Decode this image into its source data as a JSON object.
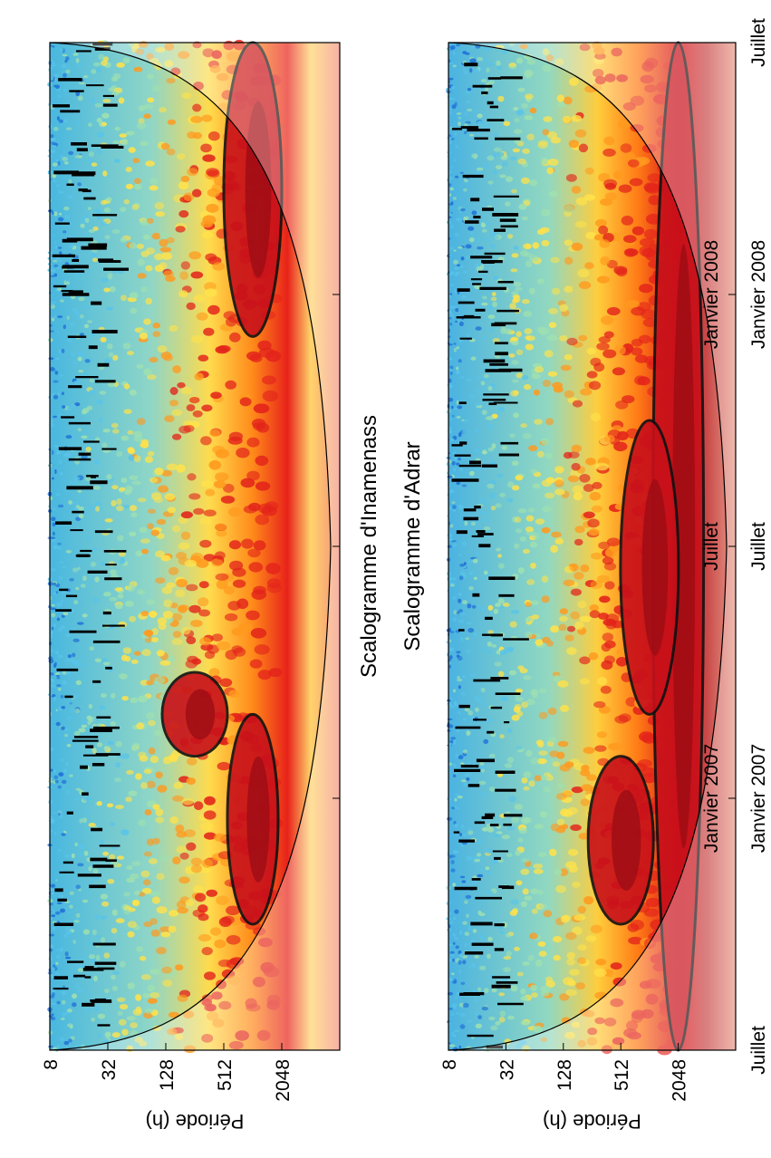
{
  "chart_data": [
    {
      "type": "heatmap",
      "title": "Scalogramme d'Inamenass",
      "ylabel": "Période (h)",
      "xlabel": "",
      "period_ticks": [
        "8",
        "32",
        "128",
        "512",
        "2048"
      ],
      "period_values": [
        8,
        32,
        128,
        512,
        2048
      ],
      "period_range": [
        8,
        8192
      ],
      "period_scale": "log2",
      "time_ticks": [
        "Janvier 2007",
        "Juillet",
        "Janvier 2008"
      ],
      "time_start": "Juillet 2006",
      "time_end": "Juillet 2008",
      "colormap": "jet",
      "contours": "significance (black)",
      "cone_of_influence": true,
      "high_power_bands": [
        {
          "center_period": 1024,
          "from": "2006-10",
          "to": "2007-03"
        },
        {
          "center_period": 1024,
          "from": "2007-12",
          "to": "2008-07"
        },
        {
          "center_period": 256,
          "from": "2007-02",
          "to": "2007-04"
        }
      ]
    },
    {
      "type": "heatmap",
      "title": "Scalogramme d'Adrar",
      "ylabel": "Période (h)",
      "xlabel": "",
      "period_ticks": [
        "8",
        "32",
        "128",
        "512",
        "2048"
      ],
      "period_values": [
        8,
        32,
        128,
        512,
        2048
      ],
      "period_range": [
        8,
        8192
      ],
      "period_scale": "log2",
      "time_ticks": [
        "Juillet",
        "Janvier 2007",
        "Juillet",
        "Janvier 2008",
        "Juillet"
      ],
      "time_start": "Juillet 2006",
      "time_end": "Juillet 2008",
      "colormap": "jet",
      "contours": "significance (black)",
      "cone_of_influence": true,
      "high_power_bands": [
        {
          "center_period": 2048,
          "from": "2006-07",
          "to": "2008-07"
        },
        {
          "center_period": 1024,
          "from": "2007-03",
          "to": "2007-10"
        },
        {
          "center_period": 512,
          "from": "2006-10",
          "to": "2007-02"
        }
      ]
    }
  ]
}
